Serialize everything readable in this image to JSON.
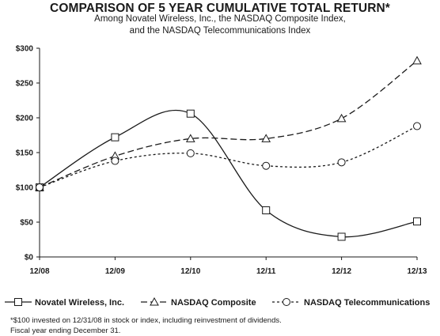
{
  "chart_data": {
    "type": "line",
    "title": "COMPARISON OF 5 YEAR CUMULATIVE TOTAL RETURN*",
    "subtitle": [
      "Among Novatel Wireless, Inc., the NASDAQ Composite Index,",
      "and the NASDAQ Telecommunications Index"
    ],
    "x": [
      "12/08",
      "12/09",
      "12/10",
      "12/11",
      "12/12",
      "12/13"
    ],
    "y_ticks": [
      "$0",
      "$50",
      "$100",
      "$150",
      "$200",
      "$250",
      "$300"
    ],
    "ylim": [
      0,
      300
    ],
    "series": [
      {
        "name": "Novatel Wireless, Inc.",
        "marker": "square",
        "dash": "solid",
        "values": [
          100,
          172,
          206,
          67,
          29,
          51
        ]
      },
      {
        "name": "NASDAQ Composite",
        "marker": "triangle",
        "dash": "long-dash",
        "values": [
          100,
          145,
          170,
          170,
          199,
          282
        ]
      },
      {
        "name": "NASDAQ Telecommunications",
        "marker": "circle",
        "dash": "short-dash",
        "values": [
          100,
          138,
          149,
          131,
          136,
          188
        ]
      }
    ],
    "grid": false,
    "legend_position": "bottom"
  },
  "footnotes": [
    "*$100 invested on 12/31/08 in stock or index, including reinvestment of dividends.",
    "Fiscal year ending December 31."
  ],
  "colors": {
    "ink": "#1a1a1a",
    "background": "#ffffff"
  }
}
